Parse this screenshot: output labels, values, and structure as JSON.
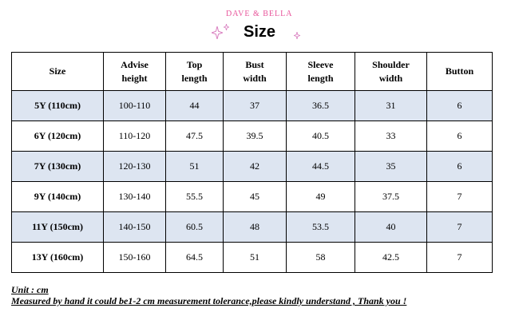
{
  "header": {
    "brand": "DAVE & BELLA",
    "title": "Size"
  },
  "table": {
    "columns": [
      [
        "Size"
      ],
      [
        "Advise",
        "height"
      ],
      [
        "Top",
        "length"
      ],
      [
        "Bust",
        "width"
      ],
      [
        "Sleeve",
        "length"
      ],
      [
        "Shoulder",
        "width"
      ],
      [
        "Button"
      ]
    ],
    "rows": [
      [
        "5Y (110cm)",
        "100-110",
        "44",
        "37",
        "36.5",
        "31",
        "6"
      ],
      [
        "6Y (120cm)",
        "110-120",
        "47.5",
        "39.5",
        "40.5",
        "33",
        "6"
      ],
      [
        "7Y (130cm)",
        "120-130",
        "51",
        "42",
        "44.5",
        "35",
        "6"
      ],
      [
        "9Y (140cm)",
        "130-140",
        "55.5",
        "45",
        "49",
        "37.5",
        "7"
      ],
      [
        "11Y (150cm)",
        "140-150",
        "60.5",
        "48",
        "53.5",
        "40",
        "7"
      ],
      [
        "13Y (160cm)",
        "150-160",
        "64.5",
        "51",
        "58",
        "42.5",
        "7"
      ]
    ],
    "shaded_color": "#dde5f1"
  },
  "footer": {
    "unit": "Unit : cm",
    "note": "Measured by hand it could be1-2 cm measurement tolerance,please kindly understand , Thank you !"
  },
  "colors": {
    "brand": "#e8559b",
    "sparkle": "#d97fc0"
  },
  "icons": [
    "sparkle-icon",
    "sparkle-icon",
    "sparkle-icon"
  ]
}
